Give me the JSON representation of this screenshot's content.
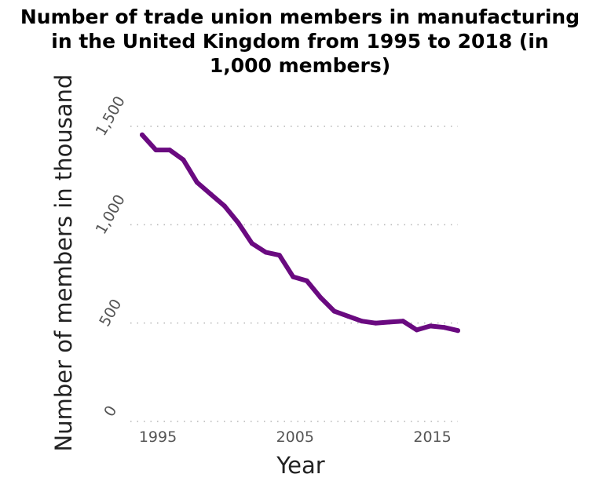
{
  "chart_data": {
    "type": "line",
    "title_lines": [
      "Number of trade union members in manufacturing",
      "in the United Kingdom from 1995 to 2018 (in",
      "1,000 members)"
    ],
    "xlabel": "Year",
    "ylabel": "Number of members in thousand",
    "xlim": [
      1995,
      2018
    ],
    "ylim": [
      0,
      1500
    ],
    "x_ticks": [
      1995,
      2005,
      2015
    ],
    "x_tick_labels": [
      "1995",
      "2005",
      "2015"
    ],
    "y_ticks": [
      0,
      500,
      1000,
      1500
    ],
    "y_tick_labels": [
      "0",
      "500",
      "1,000",
      "1,500"
    ],
    "grid": "horizontal-dotted",
    "line_color": "#6a0a80",
    "series": [
      {
        "x": [
          1995,
          1996,
          1997,
          1998,
          1999,
          2000,
          2001,
          2002,
          2003,
          2004,
          2005,
          2006,
          2007,
          2008,
          2009,
          2010,
          2011,
          2012,
          2013,
          2014,
          2015,
          2016,
          2017,
          2018
        ],
        "values": [
          1457,
          1380,
          1380,
          1330,
          1215,
          1155,
          1095,
          1010,
          905,
          860,
          845,
          735,
          715,
          630,
          560,
          535,
          510,
          500,
          505,
          510,
          465,
          485,
          478,
          462
        ]
      }
    ]
  }
}
